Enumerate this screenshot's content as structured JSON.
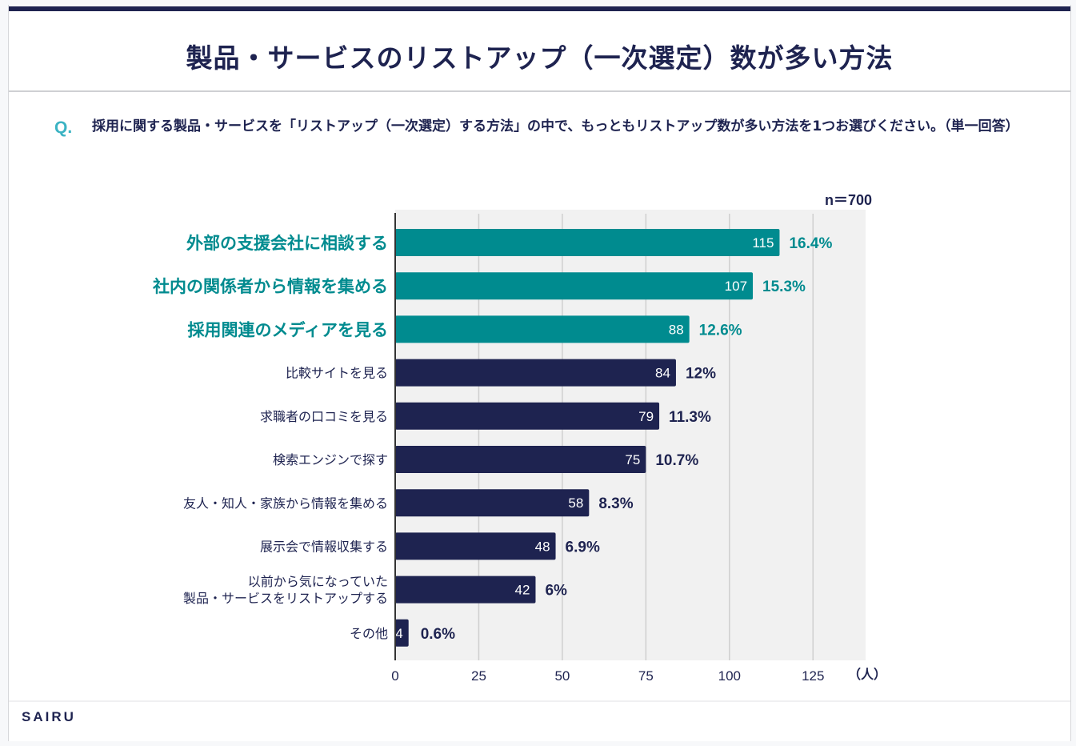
{
  "header": {
    "title": "製品・サービスのリストアップ（一次選定）数が多い方法"
  },
  "question": {
    "marker": "Q.",
    "text": "採用に関する製品・サービスを「リストアップ（一次選定）する方法」の中で、もっともリストアップ数が多い方法を1つお選びください。（単一回答）"
  },
  "footer": {
    "logo": "SAIRU"
  },
  "colors": {
    "highlight": "#008b8f",
    "default": "#1e2350",
    "plot_background": "#f1f1f1",
    "gridline": "#cfcfcf",
    "title": "#1e2350",
    "q_marker": "#3bb3c3"
  },
  "chart_data": {
    "type": "bar",
    "orientation": "horizontal",
    "title": "製品・サービスのリストアップ（一次選定）数が多い方法",
    "sample_size_label": "n＝700",
    "xlabel": "（人）",
    "ylabel": "",
    "xlim": [
      0,
      140
    ],
    "x_ticks": [
      0,
      25,
      50,
      75,
      100,
      125
    ],
    "grid": true,
    "categories": [
      [
        "外部の支援会社に相談する"
      ],
      [
        "社内の関係者から情報を集める"
      ],
      [
        "採用関連のメディアを見る"
      ],
      [
        "比較サイトを見る"
      ],
      [
        "求職者の口コミを見る"
      ],
      [
        "検索エンジンで探す"
      ],
      [
        "友人・知人・家族から情報を集める"
      ],
      [
        "展示会で情報収集する"
      ],
      [
        "以前から気になっていた",
        "製品・サービスをリストアップする"
      ],
      [
        "その他"
      ]
    ],
    "values": [
      115,
      107,
      88,
      84,
      79,
      75,
      58,
      48,
      42,
      4
    ],
    "percent_labels": [
      "16.4%",
      "15.3%",
      "12.6%",
      "12%",
      "11.3%",
      "10.7%",
      "8.3%",
      "6.9%",
      "6%",
      "0.6%"
    ],
    "highlighted": [
      true,
      true,
      true,
      false,
      false,
      false,
      false,
      false,
      false,
      false
    ]
  }
}
